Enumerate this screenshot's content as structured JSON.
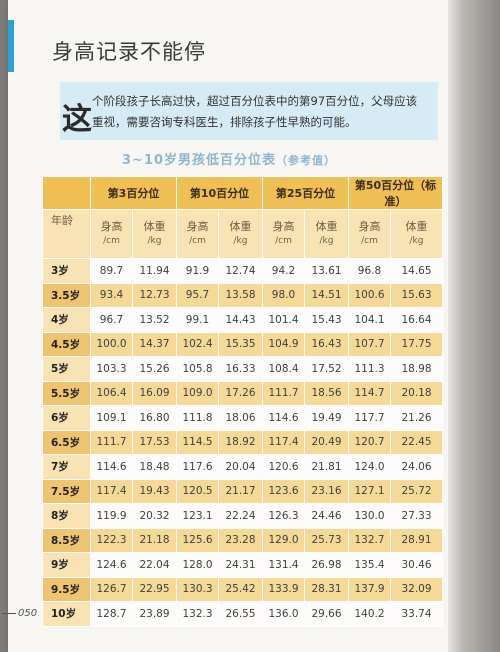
{
  "title": "身高记录不能停",
  "note": {
    "lead_char": "这",
    "text": "个阶段孩子长高过快，超过百分位表中的第97百分位，父母应该重视，需要咨询专科医生，排除孩子性早熟的可能。"
  },
  "table": {
    "title": "3~10岁男孩低百分位表",
    "title_sub": "（参考值）",
    "age_header": "年龄",
    "groups": [
      "第3百分位",
      "第10百分位",
      "第25百分位",
      "第50百分位（标准）"
    ],
    "height_label": "身高",
    "height_unit": "/cm",
    "weight_label": "体重",
    "weight_unit": "/kg",
    "rows": [
      [
        "3岁",
        "89.7",
        "11.94",
        "91.9",
        "12.74",
        "94.2",
        "13.61",
        "96.8",
        "14.65"
      ],
      [
        "3.5岁",
        "93.4",
        "12.73",
        "95.7",
        "13.58",
        "98.0",
        "14.51",
        "100.6",
        "15.63"
      ],
      [
        "4岁",
        "96.7",
        "13.52",
        "99.1",
        "14.43",
        "101.4",
        "15.43",
        "104.1",
        "16.64"
      ],
      [
        "4.5岁",
        "100.0",
        "14.37",
        "102.4",
        "15.35",
        "104.9",
        "16.43",
        "107.7",
        "17.75"
      ],
      [
        "5岁",
        "103.3",
        "15.26",
        "105.8",
        "16.33",
        "108.4",
        "17.52",
        "111.3",
        "18.98"
      ],
      [
        "5.5岁",
        "106.4",
        "16.09",
        "109.0",
        "17.26",
        "111.7",
        "18.56",
        "114.7",
        "20.18"
      ],
      [
        "6岁",
        "109.1",
        "16.80",
        "111.8",
        "18.06",
        "114.6",
        "19.49",
        "117.7",
        "21.26"
      ],
      [
        "6.5岁",
        "111.7",
        "17.53",
        "114.5",
        "18.92",
        "117.4",
        "20.49",
        "120.7",
        "22.45"
      ],
      [
        "7岁",
        "114.6",
        "18.48",
        "117.6",
        "20.04",
        "120.6",
        "21.81",
        "124.0",
        "24.06"
      ],
      [
        "7.5岁",
        "117.4",
        "19.43",
        "120.5",
        "21.17",
        "123.6",
        "23.16",
        "127.1",
        "25.72"
      ],
      [
        "8岁",
        "119.9",
        "20.32",
        "123.1",
        "22.24",
        "126.3",
        "24.46",
        "130.0",
        "27.33"
      ],
      [
        "8.5岁",
        "122.3",
        "21.18",
        "125.6",
        "23.28",
        "129.0",
        "25.73",
        "132.7",
        "28.91"
      ],
      [
        "9岁",
        "124.6",
        "22.04",
        "128.0",
        "24.31",
        "131.4",
        "26.98",
        "135.4",
        "30.46"
      ],
      [
        "9.5岁",
        "126.7",
        "22.95",
        "130.3",
        "25.42",
        "133.9",
        "28.31",
        "137.9",
        "32.09"
      ],
      [
        "10岁",
        "128.7",
        "23.89",
        "132.3",
        "26.55",
        "136.0",
        "29.66",
        "140.2",
        "33.74"
      ]
    ]
  },
  "page_number": "050"
}
